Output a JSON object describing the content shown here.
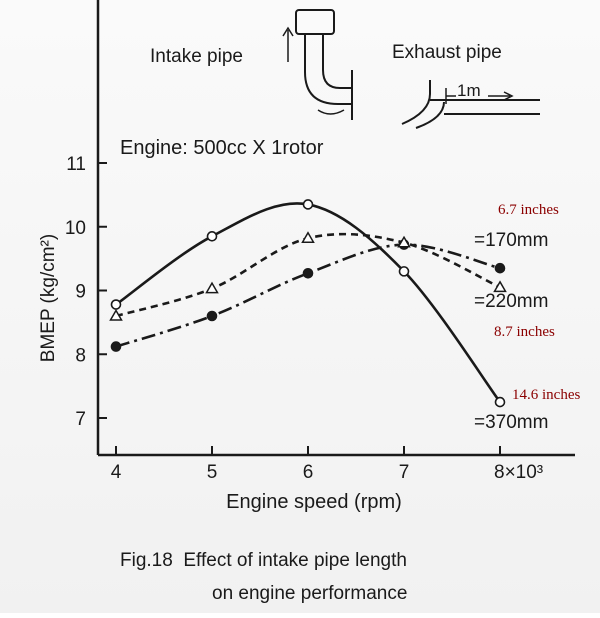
{
  "figure": {
    "caption_line1": "Fig.18  Effect of intake pipe length",
    "caption_line2": "on engine performance",
    "engine_note": "Engine: 500cc X 1rotor",
    "inset": {
      "intake_label": "Intake pipe",
      "exhaust_label": "Exhaust pipe",
      "exhaust_length": "1m"
    },
    "annotations": {
      "a170": "6.7 inches",
      "a220": "8.7 inches",
      "a370": "14.6 inches"
    },
    "colors": {
      "annotation": "#8b0000",
      "ink": "#1a1a1a"
    }
  },
  "chart_data": {
    "type": "line",
    "xlabel": "Engine speed (rpm)",
    "ylabel": "BMEP (kg/cm²)",
    "xlim": [
      3.8,
      8.3
    ],
    "ylim": [
      6.6,
      11.1
    ],
    "xticks": [
      4,
      5,
      6,
      7,
      8
    ],
    "xtick_labels": [
      "4",
      "5",
      "6",
      "7",
      "8×10³"
    ],
    "yticks": [
      7,
      8,
      9,
      10,
      11
    ],
    "ytick_labels": [
      "7",
      "8",
      "9",
      "10",
      "11"
    ],
    "grid": false,
    "series": [
      {
        "name": "=170mm",
        "style": "dashdot",
        "marker": "filled-circle",
        "x": [
          4,
          5,
          6,
          7,
          8
        ],
        "y": [
          8.12,
          8.6,
          9.27,
          9.72,
          9.35
        ]
      },
      {
        "name": "=220mm",
        "style": "dashed",
        "marker": "open-triangle",
        "x": [
          4,
          5,
          6,
          7,
          8
        ],
        "y": [
          8.6,
          9.03,
          9.82,
          9.75,
          9.05
        ]
      },
      {
        "name": "=370mm",
        "style": "solid",
        "marker": "open-circle",
        "x": [
          4,
          5,
          6,
          7,
          8
        ],
        "y": [
          8.78,
          9.85,
          10.35,
          9.3,
          7.25
        ]
      }
    ]
  }
}
